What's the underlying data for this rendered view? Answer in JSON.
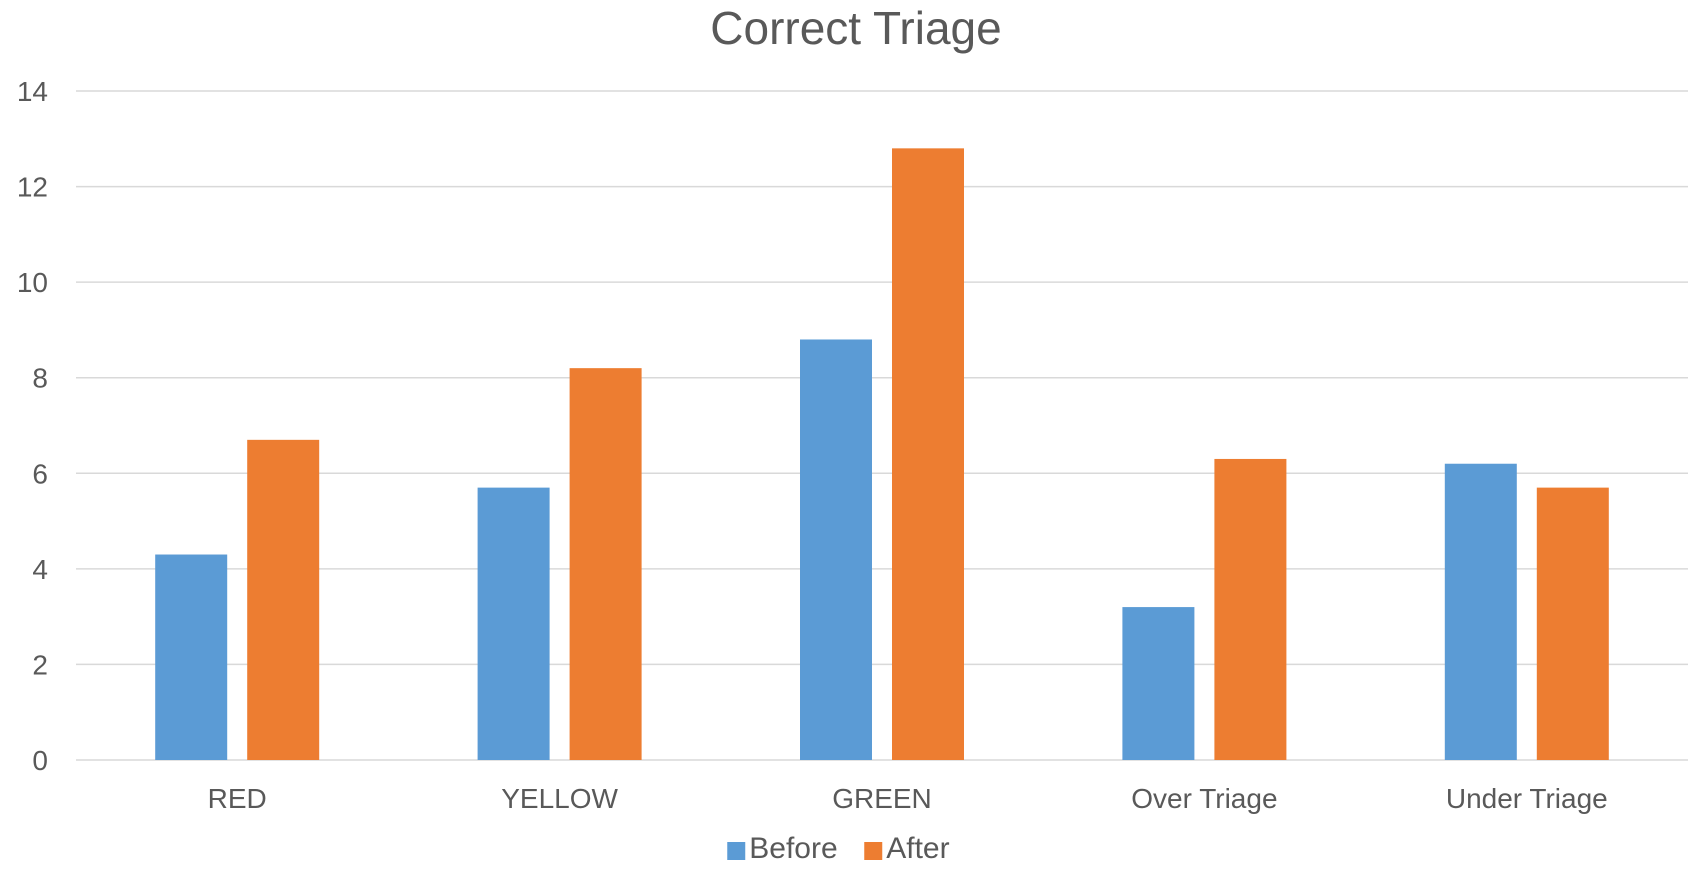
{
  "chart_data": {
    "type": "bar",
    "title": "Correct Triage",
    "xlabel": "",
    "ylabel": "",
    "categories": [
      "RED",
      "YELLOW",
      "GREEN",
      "Over Triage",
      "Under Triage"
    ],
    "series": [
      {
        "name": "Before",
        "color": "#5b9bd5",
        "values": [
          4.3,
          5.7,
          8.8,
          3.2,
          6.2
        ]
      },
      {
        "name": "After",
        "color": "#ed7d31",
        "values": [
          6.7,
          8.2,
          12.8,
          6.3,
          5.7
        ]
      }
    ],
    "ylim": [
      0,
      14
    ],
    "yticks": [
      "0",
      "2",
      "4",
      "6",
      "8",
      "10",
      "12",
      "14"
    ],
    "grid": true,
    "legend": "bottom"
  }
}
